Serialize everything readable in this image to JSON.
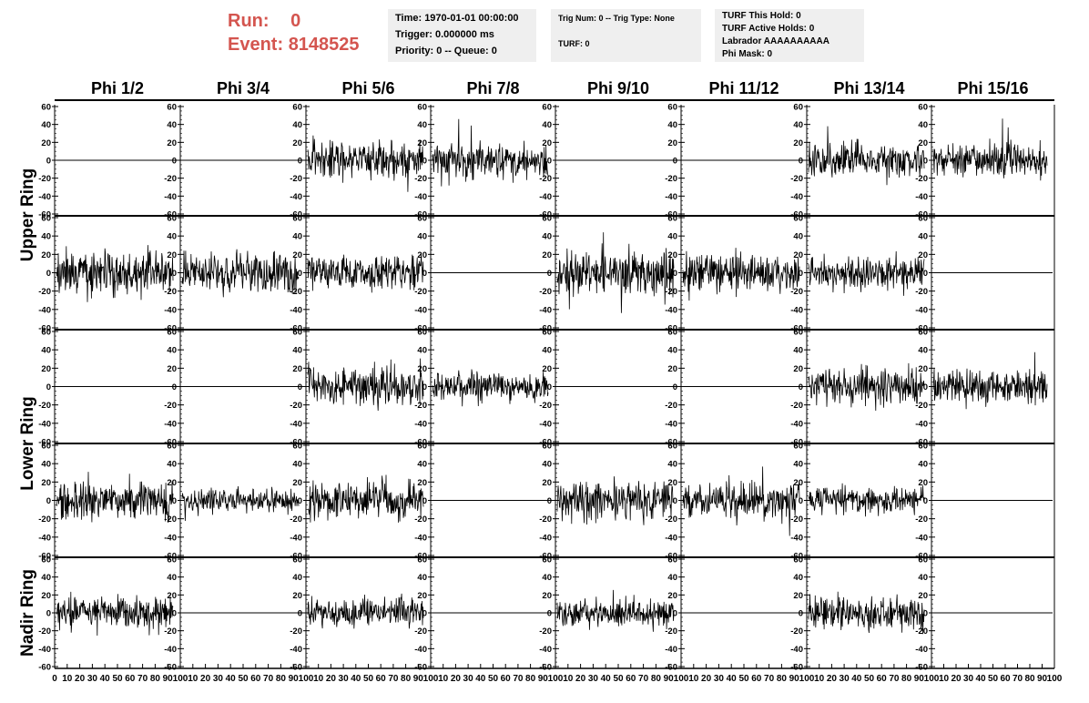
{
  "header": {
    "run_label": "Run:",
    "run_value": "0",
    "event_label": "Event:",
    "event_value": "8148525"
  },
  "info_boxes": [
    {
      "lines": [
        "Time: 1970-01-01 00:00:00",
        "Trigger: 0.000000 ms",
        "Priority: 0 -- Queue: 0"
      ]
    },
    {
      "lines": [
        "Trig Num: 0 -- Trig Type: None",
        "",
        "TURF: 0"
      ]
    },
    {
      "lines": [
        "TURF This Hold: 0",
        "TURF Active Holds: 0",
        "Labrador AAAAAAAAAA",
        "Phi Mask: 0"
      ]
    }
  ],
  "chart_data": {
    "type": "line",
    "columns": [
      "Phi 1/2",
      "Phi 3/4",
      "Phi 5/6",
      "Phi 7/8",
      "Phi 9/10",
      "Phi 11/12",
      "Phi 13/14",
      "Phi 15/16"
    ],
    "ring_labels": [
      "Upper Ring",
      "Lower Ring",
      "Nadir Ring"
    ],
    "ylim": [
      -60,
      60
    ],
    "yticks": [
      "60",
      "40",
      "20",
      "0",
      "-20",
      "-40",
      "-60"
    ],
    "xlim": [
      0,
      100
    ],
    "xticks_first": [
      "0",
      "10",
      "20",
      "30",
      "40",
      "50",
      "60",
      "70",
      "80",
      "90",
      "100"
    ],
    "xticks_other": [
      "10",
      "20",
      "30",
      "40",
      "50",
      "60",
      "70",
      "80",
      "90",
      "100"
    ],
    "rows": [
      {
        "active": [
          false,
          false,
          true,
          true,
          false,
          false,
          true,
          true
        ],
        "amp": [
          0,
          0,
          13,
          12,
          0,
          0,
          12,
          11
        ],
        "seed": 11
      },
      {
        "active": [
          true,
          true,
          true,
          false,
          true,
          true,
          true,
          false
        ],
        "amp": [
          15,
          13,
          11,
          0,
          14,
          12,
          10,
          0
        ],
        "seed": 37
      },
      {
        "active": [
          false,
          false,
          true,
          true,
          false,
          false,
          true,
          true
        ],
        "amp": [
          0,
          0,
          12,
          10,
          0,
          0,
          12,
          11
        ],
        "seed": 53
      },
      {
        "active": [
          true,
          true,
          true,
          false,
          true,
          true,
          true,
          false
        ],
        "amp": [
          12,
          8,
          13,
          0,
          13,
          12,
          9,
          0
        ],
        "seed": 71
      },
      {
        "active": [
          true,
          false,
          true,
          false,
          true,
          false,
          true,
          false
        ],
        "amp": [
          11,
          0,
          10,
          0,
          10,
          0,
          11,
          0
        ],
        "seed": 97
      }
    ]
  }
}
